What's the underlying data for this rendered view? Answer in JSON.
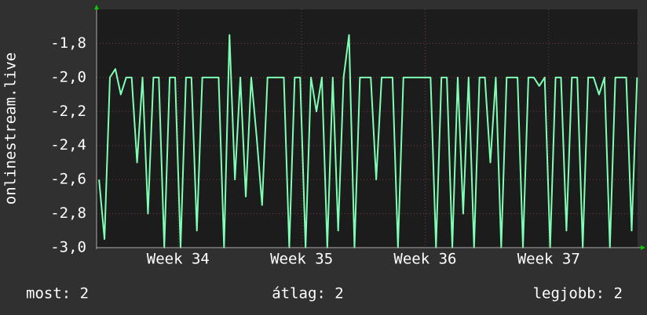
{
  "chart_data": {
    "type": "line",
    "ylabel": "onlinestream.live",
    "x": [
      33.36,
      33.404,
      33.448,
      33.492,
      33.536,
      33.58,
      33.624,
      33.668,
      33.712,
      33.756,
      33.8,
      33.844,
      33.888,
      33.932,
      33.976,
      34.02,
      34.064,
      34.108,
      34.152,
      34.196,
      34.24,
      34.284,
      34.328,
      34.372,
      34.416,
      34.46,
      34.504,
      34.548,
      34.592,
      34.636,
      34.68,
      34.724,
      34.768,
      34.812,
      34.856,
      34.9,
      34.944,
      34.988,
      35.032,
      35.076,
      35.12,
      35.164,
      35.208,
      35.252,
      35.296,
      35.34,
      35.384,
      35.428,
      35.472,
      35.516,
      35.56,
      35.604,
      35.648,
      35.692,
      35.736,
      35.78,
      35.824,
      35.868,
      35.912,
      35.956,
      36.0,
      36.044,
      36.088,
      36.132,
      36.176,
      36.22,
      36.264,
      36.308,
      36.352,
      36.396,
      36.44,
      36.484,
      36.528,
      36.572,
      36.616,
      36.66,
      36.704,
      36.748,
      36.792,
      36.836,
      36.88,
      36.924,
      36.968,
      37.012,
      37.056,
      37.1,
      37.144,
      37.188,
      37.232,
      37.276,
      37.32,
      37.364,
      37.408,
      37.452,
      37.496,
      37.54,
      37.584,
      37.628,
      37.672,
      37.716
    ],
    "series": [
      {
        "name": "onlinestream.live",
        "color": "#7fffb4",
        "values": [
          -2.6,
          -2.95,
          -2.0,
          -1.95,
          -2.1,
          -2.0,
          -2.0,
          -2.5,
          -2.0,
          -2.8,
          -2.0,
          -2.0,
          -3.0,
          -2.0,
          -2.0,
          -3.0,
          -2.0,
          -2.0,
          -2.9,
          -2.0,
          -2.0,
          -2.0,
          -2.0,
          -3.0,
          -1.75,
          -2.6,
          -2.0,
          -2.7,
          -2.0,
          -2.35,
          -2.75,
          -2.0,
          -2.0,
          -2.0,
          -2.0,
          -3.0,
          -2.0,
          -2.0,
          -3.0,
          -2.0,
          -2.2,
          -2.0,
          -3.0,
          -2.0,
          -2.9,
          -2.0,
          -1.75,
          -3.0,
          -2.0,
          -2.0,
          -2.0,
          -2.6,
          -2.0,
          -2.0,
          -2.0,
          -3.0,
          -2.0,
          -2.0,
          -2.0,
          -2.0,
          -2.0,
          -2.0,
          -3.0,
          -2.0,
          -2.0,
          -3.0,
          -2.0,
          -2.8,
          -2.0,
          -3.0,
          -2.0,
          -2.0,
          -2.5,
          -2.0,
          -3.0,
          -2.0,
          -2.0,
          -2.0,
          -3.0,
          -2.0,
          -2.0,
          -2.05,
          -2.0,
          -3.0,
          -2.0,
          -2.0,
          -2.9,
          -2.0,
          -2.0,
          -3.0,
          -2.0,
          -2.0,
          -2.1,
          -2.0,
          -3.0,
          -2.0,
          -2.0,
          -2.0,
          -2.9,
          -2.0
        ]
      }
    ],
    "xlim": [
      33.34,
      37.72
    ],
    "xticks": [
      {
        "value": 34,
        "label": "Week 34"
      },
      {
        "value": 35,
        "label": "Week 35"
      },
      {
        "value": 36,
        "label": "Week 36"
      },
      {
        "value": 37,
        "label": "Week 37"
      }
    ],
    "ylim": [
      -3.0,
      -1.6
    ],
    "yticks": [
      {
        "value": -3.0,
        "label": "-3,0"
      },
      {
        "value": -2.8,
        "label": "-2,8"
      },
      {
        "value": -2.6,
        "label": "-2,6"
      },
      {
        "value": -2.4,
        "label": "-2,4"
      },
      {
        "value": -2.2,
        "label": "-2,2"
      },
      {
        "value": -2.0,
        "label": "-2,0"
      },
      {
        "value": -1.8,
        "label": "-1,8"
      }
    ],
    "grid": true,
    "stats": [
      "most: 2",
      "átlag: 2",
      "legjobb: 2"
    ]
  }
}
